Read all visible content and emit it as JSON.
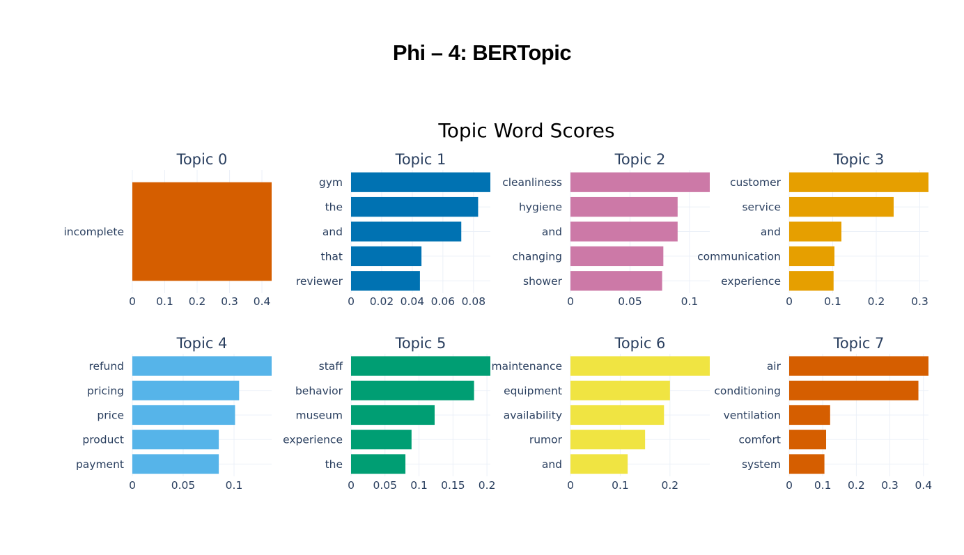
{
  "slide_title": "Phi – 4: BERTopic",
  "chart_data": {
    "type": "bar",
    "orientation": "horizontal",
    "title": "Topic Word Scores",
    "grid": true,
    "subplots": [
      {
        "title": "Topic 0",
        "color": "#D55E00",
        "words": [
          "incomplete"
        ],
        "scores": [
          0.43
        ],
        "xticks": [
          0,
          0.1,
          0.2,
          0.3,
          0.4
        ],
        "xtick_labels": [
          "0",
          "0.1",
          "0.2",
          "0.3",
          "0.4"
        ],
        "xlim": [
          0,
          0.43
        ]
      },
      {
        "title": "Topic 1",
        "color": "#0072B2",
        "words": [
          "gym",
          "the",
          "and",
          "that",
          "reviewer"
        ],
        "scores": [
          0.091,
          0.083,
          0.072,
          0.046,
          0.045
        ],
        "xticks": [
          0,
          0.02,
          0.04,
          0.06,
          0.08
        ],
        "xtick_labels": [
          "0",
          "0.02",
          "0.04",
          "0.06",
          "0.08"
        ],
        "xlim": [
          0,
          0.091
        ]
      },
      {
        "title": "Topic 2",
        "color": "#CC79A7",
        "words": [
          "cleanliness",
          "hygiene",
          "and",
          "changing",
          "shower"
        ],
        "scores": [
          0.117,
          0.09,
          0.09,
          0.078,
          0.077
        ],
        "xticks": [
          0,
          0.05,
          0.1
        ],
        "xtick_labels": [
          "0",
          "0.05",
          "0.1"
        ],
        "xlim": [
          0,
          0.117
        ]
      },
      {
        "title": "Topic 3",
        "color": "#E69F00",
        "words": [
          "customer",
          "service",
          "and",
          "communication",
          "experience"
        ],
        "scores": [
          0.32,
          0.24,
          0.12,
          0.104,
          0.102
        ],
        "xticks": [
          0,
          0.1,
          0.2,
          0.3
        ],
        "xtick_labels": [
          "0",
          "0.1",
          "0.2",
          "0.3"
        ],
        "xlim": [
          0,
          0.32
        ]
      },
      {
        "title": "Topic 4",
        "color": "#56B4E9",
        "words": [
          "refund",
          "pricing",
          "price",
          "product",
          "payment"
        ],
        "scores": [
          0.137,
          0.105,
          0.101,
          0.085,
          0.085
        ],
        "xticks": [
          0,
          0.05,
          0.1
        ],
        "xtick_labels": [
          "0",
          "0.05",
          "0.1"
        ],
        "xlim": [
          0,
          0.137
        ]
      },
      {
        "title": "Topic 5",
        "color": "#009E73",
        "words": [
          "staff",
          "behavior",
          "museum",
          "experience",
          "the"
        ],
        "scores": [
          0.205,
          0.181,
          0.123,
          0.089,
          0.08
        ],
        "xticks": [
          0,
          0.05,
          0.1,
          0.15,
          0.2
        ],
        "xtick_labels": [
          "0",
          "0.05",
          "0.1",
          "0.15",
          "0.2"
        ],
        "xlim": [
          0,
          0.205
        ]
      },
      {
        "title": "Topic 6",
        "color": "#F0E442",
        "words": [
          "maintenance",
          "equipment",
          "availability",
          "rumor",
          "and"
        ],
        "scores": [
          0.28,
          0.2,
          0.188,
          0.15,
          0.115
        ],
        "xticks": [
          0,
          0.1,
          0.2
        ],
        "xtick_labels": [
          "0",
          "0.1",
          "0.2"
        ],
        "xlim": [
          0,
          0.28
        ]
      },
      {
        "title": "Topic 7",
        "color": "#D55E00",
        "words": [
          "air",
          "conditioning",
          "ventilation",
          "comfort",
          "system"
        ],
        "scores": [
          0.415,
          0.385,
          0.122,
          0.11,
          0.105
        ],
        "xticks": [
          0,
          0.1,
          0.2,
          0.3,
          0.4
        ],
        "xtick_labels": [
          "0",
          "0.1",
          "0.2",
          "0.3",
          "0.4"
        ],
        "xlim": [
          0,
          0.415
        ]
      }
    ]
  }
}
